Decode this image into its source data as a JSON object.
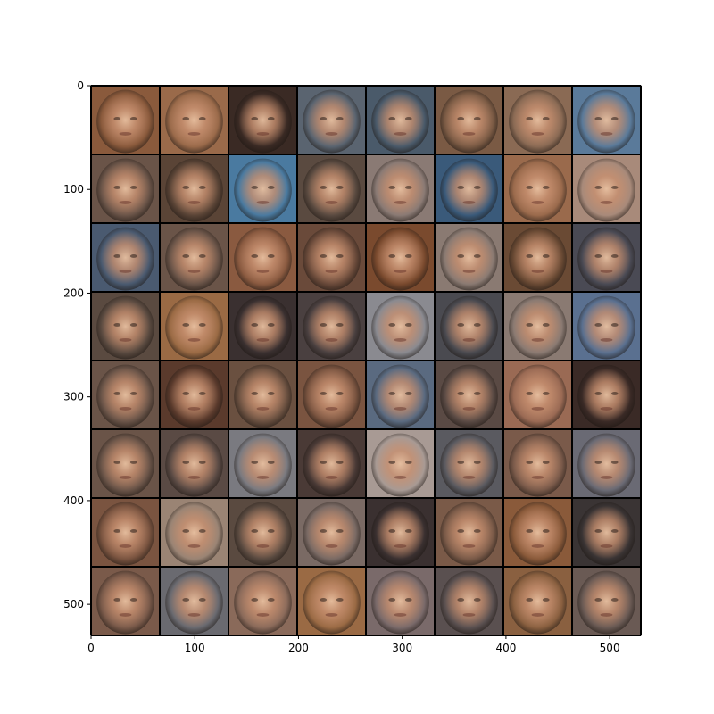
{
  "image": {
    "description_kind": "grid of generated face samples (8 x 8)",
    "rows": 8,
    "cols": 8,
    "axes": {
      "x_ticks": [
        0,
        100,
        200,
        300,
        400,
        500
      ],
      "y_ticks": [
        0,
        100,
        200,
        300,
        400,
        500
      ],
      "x_range": [
        0,
        530
      ],
      "y_range": [
        0,
        530
      ]
    },
    "colors": {
      "grid_line": "#000000",
      "background": "#ffffff"
    },
    "tiles": [
      [
        "#8a5a3c",
        "#9a6a4a",
        "#3a2a24",
        "#5a6470",
        "#4a5a6a",
        "#7a5a44",
        "#8a6a54",
        "#5a7a9a"
      ],
      [
        "#6a5448",
        "#5a4436",
        "#4a7aa0",
        "#5a4a40",
        "#8a7a74",
        "#3a5a7a",
        "#9a6a4c",
        "#a88a7a"
      ],
      [
        "#4a5a70",
        "#6a5448",
        "#8a5a40",
        "#6a4a3a",
        "#7a4a2e",
        "#8a7a72",
        "#6a4a34",
        "#4a4a54"
      ],
      [
        "#5a4a40",
        "#9a6a44",
        "#3a3030",
        "#4a4040",
        "#8a8a90",
        "#4a4a50",
        "#8a7a72",
        "#5a7090"
      ],
      [
        "#6a5448",
        "#5a3a2c",
        "#6a5040",
        "#7a5440",
        "#5a6a80",
        "#5a4a44",
        "#9a6a54",
        "#3a2a26"
      ],
      [
        "#6a5448",
        "#5a4a44",
        "#7a7a80",
        "#4a3a36",
        "#a89a94",
        "#5a5a60",
        "#7a5a4a",
        "#6a6a74"
      ],
      [
        "#7a5440",
        "#9a8474",
        "#5a4a40",
        "#7a6a64",
        "#3a3030",
        "#7a5a48",
        "#8a5a3a",
        "#3a3434"
      ],
      [
        "#7a5a4a",
        "#6a6a70",
        "#8a6a5a",
        "#9a6a44",
        "#7a6a6a",
        "#5a5050",
        "#8a6040",
        "#6a5a54"
      ]
    ]
  }
}
